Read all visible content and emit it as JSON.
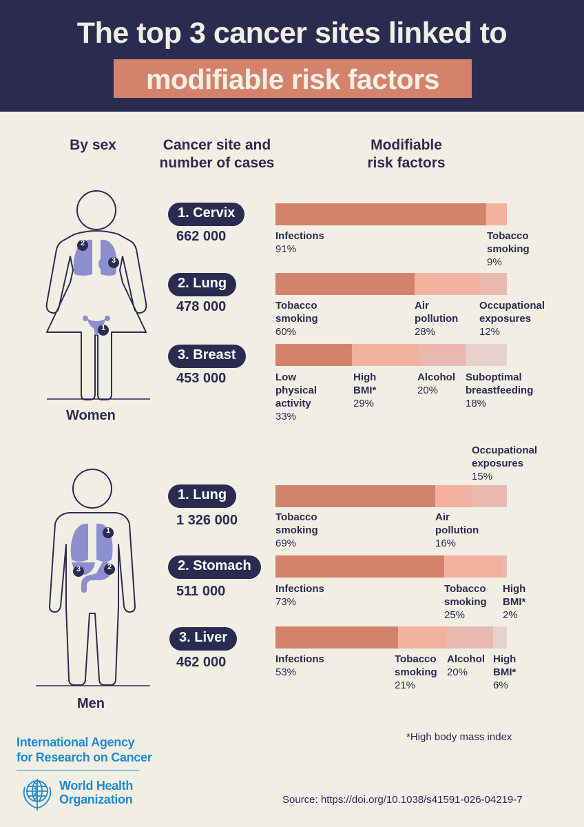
{
  "header": {
    "title_line1": "The top 3 cancer sites linked to",
    "title_line2": "modifiable risk factors"
  },
  "columns": {
    "by_sex": "By sex",
    "site_line1": "Cancer site and",
    "site_line2": "number of cases",
    "risk_line1": "Modifiable",
    "risk_line2": "risk factors"
  },
  "women": {
    "label": "Women",
    "markers": [
      "1",
      "2",
      "3"
    ],
    "sites": [
      {
        "rank_name": "1. Cervix",
        "cases": "662 000",
        "factors": [
          {
            "name": "Infections",
            "pct_label": "91%",
            "value": 91,
            "color": "#d4826a"
          },
          {
            "name": "Tobacco smoking",
            "pct_label": "9%",
            "value": 9,
            "color": "#f3b2a0"
          }
        ]
      },
      {
        "rank_name": "2. Lung",
        "cases": "478 000",
        "factors": [
          {
            "name": "Tobacco smoking",
            "pct_label": "60%",
            "value": 60,
            "color": "#d4826a"
          },
          {
            "name": "Air pollution",
            "pct_label": "28%",
            "value": 28,
            "color": "#f3b2a0"
          },
          {
            "name": "Occupational exposures",
            "pct_label": "12%",
            "value": 12,
            "color": "#e9b9b0"
          }
        ]
      },
      {
        "rank_name": "3. Breast",
        "cases": "453 000",
        "factors": [
          {
            "name": "Low physical activity",
            "pct_label": "33%",
            "value": 33,
            "color": "#d4826a"
          },
          {
            "name": "High BMI*",
            "pct_label": "29%",
            "value": 29,
            "color": "#f3b2a0"
          },
          {
            "name": "Alcohol",
            "pct_label": "20%",
            "value": 20,
            "color": "#e9b9b0"
          },
          {
            "name": "Suboptimal breastfeeding",
            "pct_label": "18%",
            "value": 18,
            "color": "#e6d1cc"
          }
        ]
      }
    ]
  },
  "men": {
    "label": "Men",
    "markers": [
      "1",
      "2",
      "3"
    ],
    "sites": [
      {
        "rank_name": "1. Lung",
        "cases": "1 326 000",
        "factors": [
          {
            "name": "Tobacco smoking",
            "pct_label": "69%",
            "value": 69,
            "color": "#d4826a"
          },
          {
            "name": "Air pollution",
            "pct_label": "16%",
            "value": 16,
            "color": "#f3b2a0"
          },
          {
            "name": "Occupational exposures",
            "pct_label": "15%",
            "value": 15,
            "color": "#e9b9b0"
          }
        ]
      },
      {
        "rank_name": "2. Stomach",
        "cases": "511 000",
        "factors": [
          {
            "name": "Infections",
            "pct_label": "73%",
            "value": 73,
            "color": "#d4826a"
          },
          {
            "name": "Tobacco smoking",
            "pct_label": "25%",
            "value": 25,
            "color": "#f3b2a0"
          },
          {
            "name": "High BMI*",
            "pct_label": "2%",
            "value": 2,
            "color": "#e9b9b0"
          }
        ]
      },
      {
        "rank_name": "3. Liver",
        "cases": "462 000",
        "factors": [
          {
            "name": "Infections",
            "pct_label": "53%",
            "value": 53,
            "color": "#d4826a"
          },
          {
            "name": "Tobacco smoking",
            "pct_label": "21%",
            "value": 21,
            "color": "#f3b2a0"
          },
          {
            "name": "Alcohol",
            "pct_label": "20%",
            "value": 20,
            "color": "#e9b9b0"
          },
          {
            "name": "High BMI*",
            "pct_label": "6%",
            "value": 6,
            "color": "#e6d1cc"
          }
        ]
      }
    ]
  },
  "footnote": "*High body mass index",
  "logos": {
    "iarc_line1": "International Agency",
    "iarc_line2": "for Research on Cancer",
    "who_line1": "World Health",
    "who_line2": "Organization"
  },
  "source": "Source: https://doi.org/10.1038/s41591-026-04219-7",
  "colors": {
    "navy": "#2b2b52",
    "background": "#f1efe4",
    "accent": "#d4826a",
    "organ": "#8b8fd0",
    "who_blue": "#1f8bd1"
  }
}
